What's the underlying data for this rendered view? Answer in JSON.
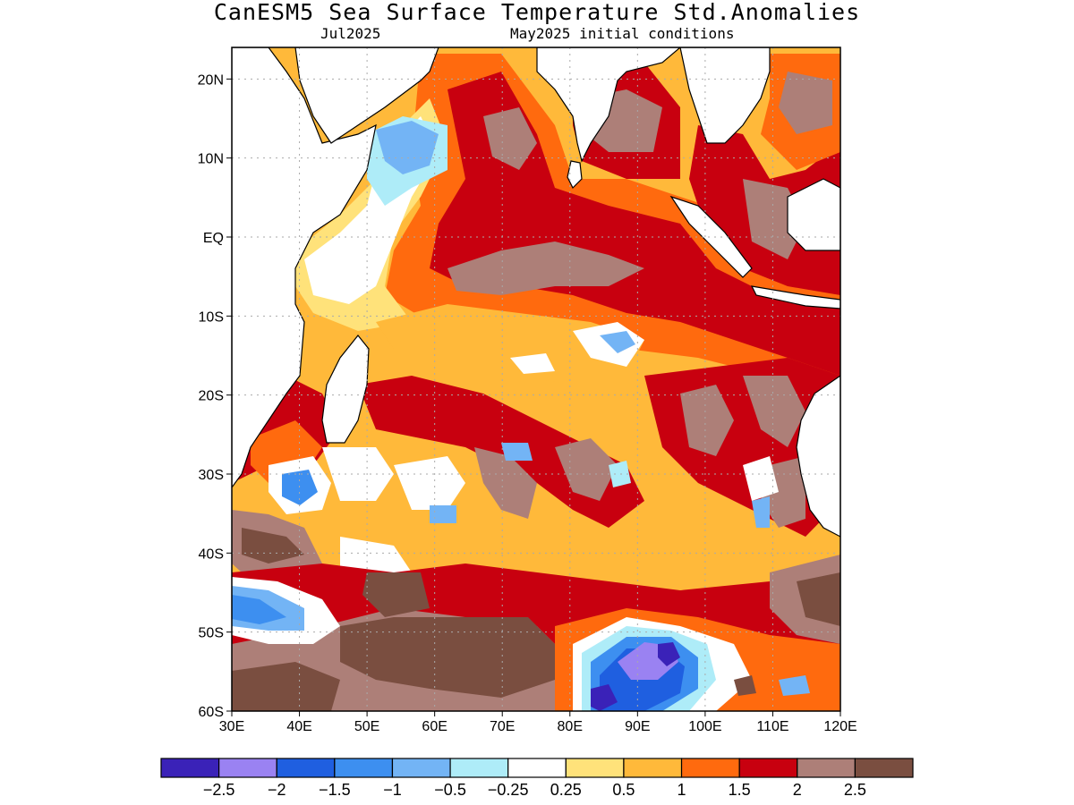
{
  "title": "CanESM5 Sea Surface Temperature Std.Anomalies",
  "subtitle_left": "Jul2025",
  "subtitle_right": "May2025 initial conditions",
  "lon_labels": [
    "30E",
    "40E",
    "50E",
    "60E",
    "70E",
    "80E",
    "90E",
    "100E",
    "110E",
    "120E"
  ],
  "lat_labels": [
    "20N",
    "10N",
    "EQ",
    "10S",
    "20S",
    "30S",
    "40S",
    "50S",
    "60S"
  ],
  "colorbar": {
    "colors": [
      "#3a22b8",
      "#9a82f2",
      "#1f5fe0",
      "#3d8ff0",
      "#73b4f5",
      "#aeecf8",
      "#ffffff",
      "#ffe27a",
      "#ffb93a",
      "#ff6a0e",
      "#c8000f",
      "#ad7f78",
      "#7a4e40"
    ],
    "labels": [
      "−2.5",
      "−2",
      "−1.5",
      "−1",
      "−0.5",
      "−0.25",
      "0.25",
      "0.5",
      "1",
      "1.5",
      "2",
      "2.5"
    ]
  },
  "map": {
    "ocean_base": "#ffb93a",
    "land": "#ffffff",
    "coast": "#000000",
    "lon_range": [
      30,
      120
    ],
    "lat_range": [
      -60,
      24
    ]
  }
}
